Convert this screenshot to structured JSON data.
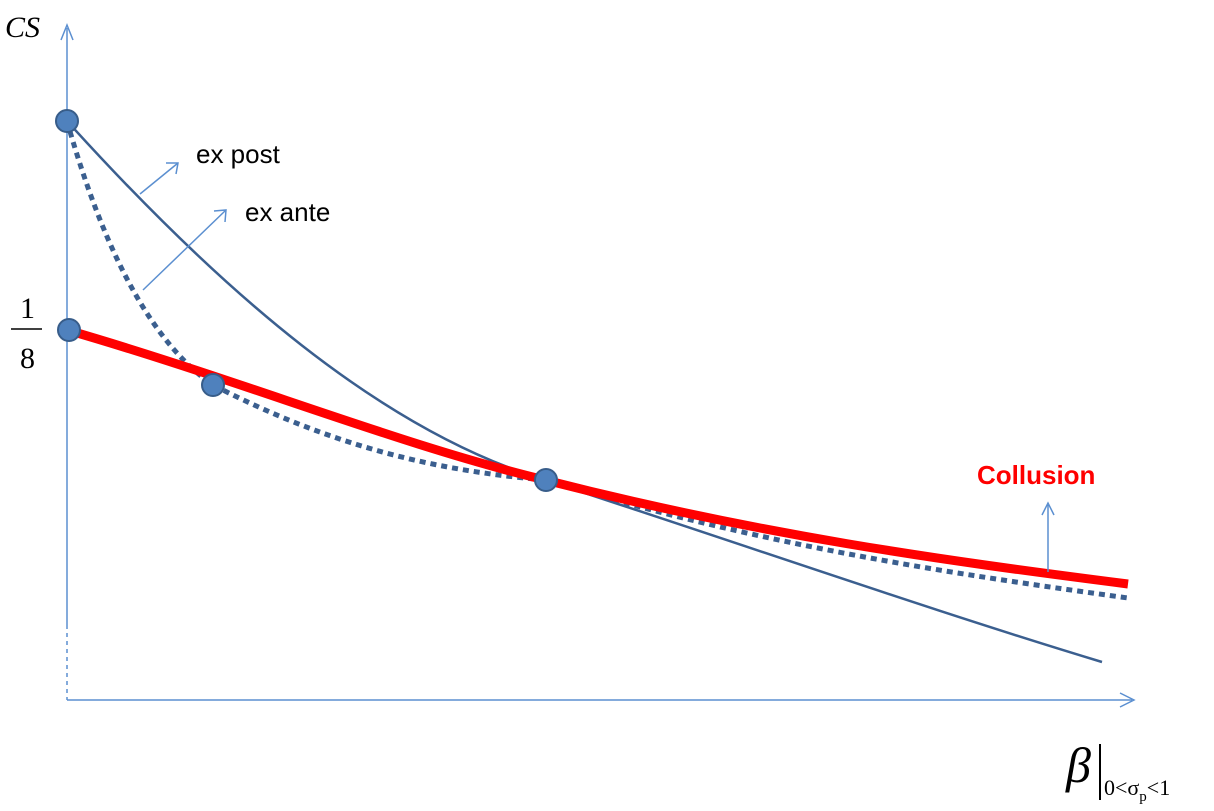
{
  "y_axis_label": "CS",
  "y_tick_label": {
    "numerator": "1",
    "denominator": "8"
  },
  "x_axis_label": {
    "symbol": "β",
    "subscript_left": "0<σ",
    "subscript_p": "p",
    "subscript_right": "<1"
  },
  "annotations": {
    "ex_post": "ex post",
    "ex_ante": "ex ante",
    "collusion": "Collusion"
  },
  "colors": {
    "axis": "#5b8fd0",
    "curve_blue": "#3b5f8f",
    "collusion_red": "#ff0000",
    "marker_fill": "#4f81bd",
    "marker_stroke": "#385d8a",
    "annotation_arrow": "#5b8fd0"
  }
}
